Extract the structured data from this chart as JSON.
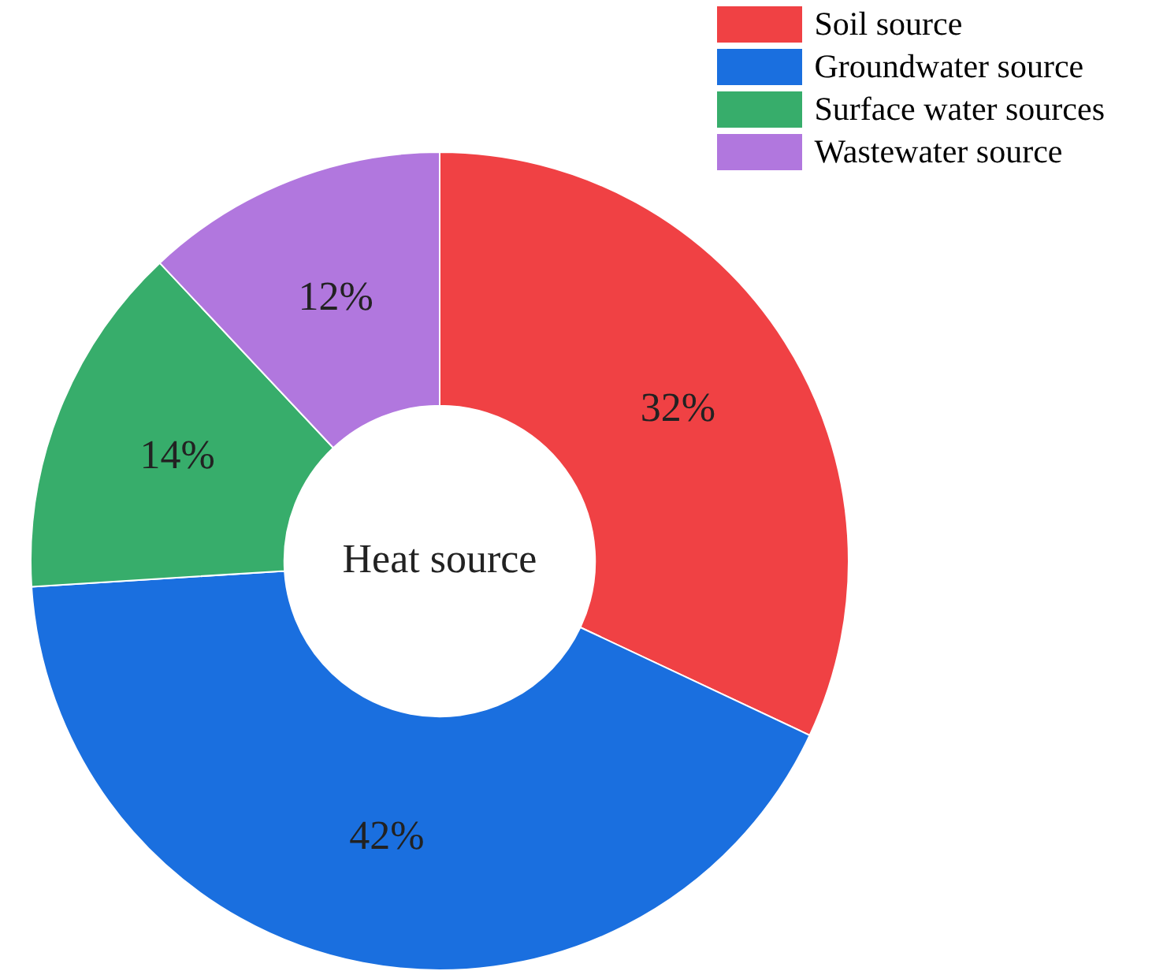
{
  "chart_data": {
    "type": "donut",
    "title": "Heat source",
    "categories": [
      "Soil source",
      "Groundwater source",
      "Surface water sources",
      "Wastewater source"
    ],
    "values": [
      32,
      42,
      14,
      12
    ],
    "colors": [
      "#f04144",
      "#1a6fdf",
      "#37ad6b",
      "#b177de"
    ],
    "value_labels": [
      "32%",
      "42%",
      "14%",
      "12%"
    ],
    "legend": "top right"
  }
}
